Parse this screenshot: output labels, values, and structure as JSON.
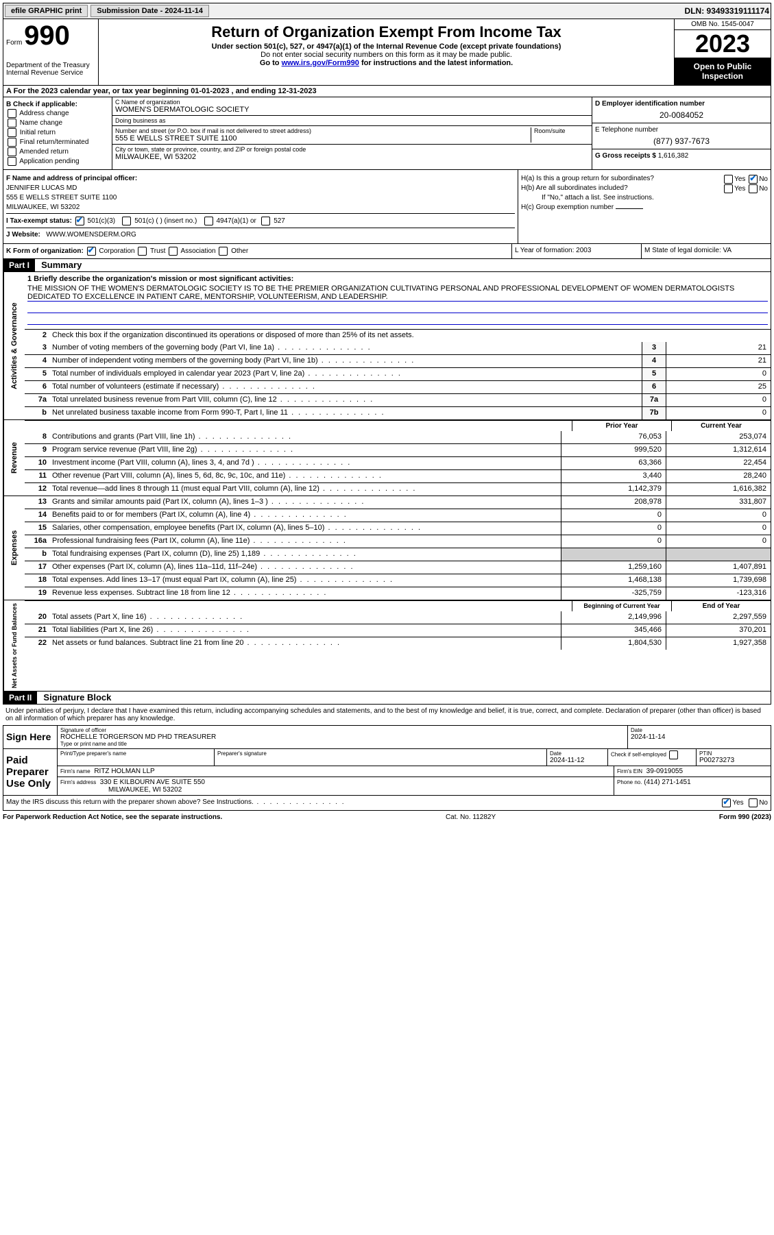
{
  "topbar": {
    "efile": "efile GRAPHIC print",
    "submission_label": "Submission Date - 2024-11-14",
    "dln": "DLN: 93493319111174"
  },
  "header": {
    "form_word": "Form",
    "form_num": "990",
    "dept": "Department of the Treasury Internal Revenue Service",
    "title": "Return of Organization Exempt From Income Tax",
    "sub1": "Under section 501(c), 527, or 4947(a)(1) of the Internal Revenue Code (except private foundations)",
    "sub2": "Do not enter social security numbers on this form as it may be made public.",
    "sub3_pre": "Go to ",
    "sub3_link": "www.irs.gov/Form990",
    "sub3_post": " for instructions and the latest information.",
    "omb": "OMB No. 1545-0047",
    "year": "2023",
    "inspect": "Open to Public Inspection"
  },
  "row_a": "A For the 2023 calendar year, or tax year beginning 01-01-2023   , and ending 12-31-2023",
  "col_b": {
    "title": "B Check if applicable:",
    "opts": [
      "Address change",
      "Name change",
      "Initial return",
      "Final return/terminated",
      "Amended return",
      "Application pending"
    ]
  },
  "col_c": {
    "name_lbl": "C Name of organization",
    "name": "WOMEN'S DERMATOLOGIC SOCIETY",
    "dba_lbl": "Doing business as",
    "dba": "",
    "street_lbl": "Number and street (or P.O. box if mail is not delivered to street address)",
    "room_lbl": "Room/suite",
    "street": "555 E WELLS STREET SUITE 1100",
    "city_lbl": "City or town, state or province, country, and ZIP or foreign postal code",
    "city": "MILWAUKEE, WI  53202"
  },
  "col_d": {
    "ein_lbl": "D Employer identification number",
    "ein": "20-0084052",
    "phone_lbl": "E Telephone number",
    "phone": "(877) 937-7673",
    "gross_lbl": "G Gross receipts $",
    "gross": "1,616,382"
  },
  "section_f": {
    "f_lbl": "F Name and address of principal officer:",
    "f_name": "JENNIFER LUCAS MD",
    "f_addr1": "555 E WELLS STREET SUITE 1100",
    "f_addr2": "MILWAUKEE, WI  53202",
    "i_lbl": "I    Tax-exempt status:",
    "i_501c3": "501(c)(3)",
    "i_501c": "501(c) (  ) (insert no.)",
    "i_4947": "4947(a)(1) or",
    "i_527": "527",
    "j_lbl": "J    Website:",
    "j_val": "WWW.WOMENSDERM.ORG"
  },
  "section_h": {
    "ha": "H(a)  Is this a group return for subordinates?",
    "ha_yes": "Yes",
    "ha_no": "No",
    "hb": "H(b)  Are all subordinates included?",
    "hb_yes": "Yes",
    "hb_no": "No",
    "hb_note": "If \"No,\" attach a list. See instructions.",
    "hc": "H(c)  Group exemption number"
  },
  "row_k": {
    "k_lbl": "K Form of organization:",
    "k_corp": "Corporation",
    "k_trust": "Trust",
    "k_assoc": "Association",
    "k_other": "Other",
    "l": "L Year of formation: 2003",
    "m": "M State of legal domicile: VA"
  },
  "part1": {
    "hdr": "Part I",
    "title": "Summary",
    "q1_lbl": "1   Briefly describe the organization's mission or most significant activities:",
    "q1_text": "THE MISSION OF THE WOMEN'S DERMATOLOGIC SOCIETY IS TO BE THE PREMIER ORGANIZATION CULTIVATING PERSONAL AND PROFESSIONAL DEVELOPMENT OF WOMEN DERMATOLOGISTS DEDICATED TO EXCELLENCE IN PATIENT CARE, MENTORSHIP, VOLUNTEERISM, AND LEADERSHIP.",
    "q2": "Check this box         if the organization discontinued its operations or disposed of more than 25% of its net assets.",
    "lines_gov": [
      {
        "n": "3",
        "d": "Number of voting members of the governing body (Part VI, line 1a)",
        "b": "3",
        "v": "21"
      },
      {
        "n": "4",
        "d": "Number of independent voting members of the governing body (Part VI, line 1b)",
        "b": "4",
        "v": "21"
      },
      {
        "n": "5",
        "d": "Total number of individuals employed in calendar year 2023 (Part V, line 2a)",
        "b": "5",
        "v": "0"
      },
      {
        "n": "6",
        "d": "Total number of volunteers (estimate if necessary)",
        "b": "6",
        "v": "25"
      },
      {
        "n": "7a",
        "d": "Total unrelated business revenue from Part VIII, column (C), line 12",
        "b": "7a",
        "v": "0"
      },
      {
        "n": "b",
        "d": "Net unrelated business taxable income from Form 990-T, Part I, line 11",
        "b": "7b",
        "v": "0"
      }
    ],
    "prior_hdr": "Prior Year",
    "curr_hdr": "Current Year",
    "lines_rev": [
      {
        "n": "8",
        "d": "Contributions and grants (Part VIII, line 1h)",
        "p": "76,053",
        "c": "253,074"
      },
      {
        "n": "9",
        "d": "Program service revenue (Part VIII, line 2g)",
        "p": "999,520",
        "c": "1,312,614"
      },
      {
        "n": "10",
        "d": "Investment income (Part VIII, column (A), lines 3, 4, and 7d )",
        "p": "63,366",
        "c": "22,454"
      },
      {
        "n": "11",
        "d": "Other revenue (Part VIII, column (A), lines 5, 6d, 8c, 9c, 10c, and 11e)",
        "p": "3,440",
        "c": "28,240"
      },
      {
        "n": "12",
        "d": "Total revenue—add lines 8 through 11 (must equal Part VIII, column (A), line 12)",
        "p": "1,142,379",
        "c": "1,616,382"
      }
    ],
    "lines_exp": [
      {
        "n": "13",
        "d": "Grants and similar amounts paid (Part IX, column (A), lines 1–3 )",
        "p": "208,978",
        "c": "331,807"
      },
      {
        "n": "14",
        "d": "Benefits paid to or for members (Part IX, column (A), line 4)",
        "p": "0",
        "c": "0"
      },
      {
        "n": "15",
        "d": "Salaries, other compensation, employee benefits (Part IX, column (A), lines 5–10)",
        "p": "0",
        "c": "0"
      },
      {
        "n": "16a",
        "d": "Professional fundraising fees (Part IX, column (A), line 11e)",
        "p": "0",
        "c": "0"
      },
      {
        "n": "b",
        "d": "Total fundraising expenses (Part IX, column (D), line 25) 1,189",
        "p": "",
        "c": "",
        "grey": true
      },
      {
        "n": "17",
        "d": "Other expenses (Part IX, column (A), lines 11a–11d, 11f–24e)",
        "p": "1,259,160",
        "c": "1,407,891"
      },
      {
        "n": "18",
        "d": "Total expenses. Add lines 13–17 (must equal Part IX, column (A), line 25)",
        "p": "1,468,138",
        "c": "1,739,698"
      },
      {
        "n": "19",
        "d": "Revenue less expenses. Subtract line 18 from line 12",
        "p": "-325,759",
        "c": "-123,316"
      }
    ],
    "beg_hdr": "Beginning of Current Year",
    "end_hdr": "End of Year",
    "lines_net": [
      {
        "n": "20",
        "d": "Total assets (Part X, line 16)",
        "p": "2,149,996",
        "c": "2,297,559"
      },
      {
        "n": "21",
        "d": "Total liabilities (Part X, line 26)",
        "p": "345,466",
        "c": "370,201"
      },
      {
        "n": "22",
        "d": "Net assets or fund balances. Subtract line 21 from line 20",
        "p": "1,804,530",
        "c": "1,927,358"
      }
    ],
    "vtab_gov": "Activities & Governance",
    "vtab_rev": "Revenue",
    "vtab_exp": "Expenses",
    "vtab_net": "Net Assets or Fund Balances"
  },
  "part2": {
    "hdr": "Part II",
    "title": "Signature Block",
    "perjury": "Under penalties of perjury, I declare that I have examined this return, including accompanying schedules and statements, and to the best of my knowledge and belief, it is true, correct, and complete. Declaration of preparer (other than officer) is based on all information of which preparer has any knowledge.",
    "sign_here": "Sign Here",
    "sig_officer_lbl": "Signature of officer",
    "sig_officer": "ROCHELLE TORGERSON MD PHD  TREASURER",
    "sig_type_lbl": "Type or print name and title",
    "sig_date_lbl": "Date",
    "sig_date": "2024-11-14",
    "paid": "Paid Preparer Use Only",
    "prep_name_lbl": "Print/Type preparer's name",
    "prep_sig_lbl": "Preparer's signature",
    "prep_date_lbl": "Date",
    "prep_date": "2024-11-12",
    "prep_check_lbl": "Check         if self-employed",
    "ptin_lbl": "PTIN",
    "ptin": "P00273273",
    "firm_name_lbl": "Firm's name",
    "firm_name": "RITZ HOLMAN LLP",
    "firm_ein_lbl": "Firm's EIN",
    "firm_ein": "39-0919055",
    "firm_addr_lbl": "Firm's address",
    "firm_addr1": "330 E KILBOURN AVE SUITE 550",
    "firm_addr2": "MILWAUKEE, WI  53202",
    "firm_phone_lbl": "Phone no.",
    "firm_phone": "(414) 271-1451",
    "discuss": "May the IRS discuss this return with the preparer shown above? See Instructions.",
    "discuss_yes": "Yes",
    "discuss_no": "No"
  },
  "footer": {
    "left": "For Paperwork Reduction Act Notice, see the separate instructions.",
    "mid": "Cat. No. 11282Y",
    "right": "Form 990 (2023)"
  }
}
